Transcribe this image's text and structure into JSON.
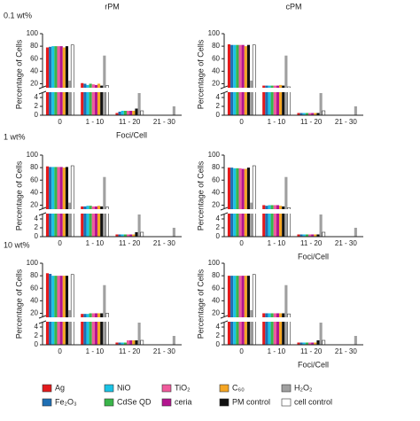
{
  "legend": [
    {
      "name": "Ag",
      "color": "#e31a1c"
    },
    {
      "name": "Fe₂O₃",
      "color": "#1f6fb4"
    },
    {
      "name": "NiO",
      "color": "#19c3e6"
    },
    {
      "name": "CdSe QD",
      "color": "#3ab54a"
    },
    {
      "name": "TiO₂",
      "color": "#f05a9c"
    },
    {
      "name": "ceria",
      "color": "#b3158f"
    },
    {
      "name": "C₆₀",
      "color": "#f5a623"
    },
    {
      "name": "PM control",
      "color": "#111111"
    },
    {
      "name": "H₂O₂",
      "color": "#a0a0a0"
    },
    {
      "name": "cell control",
      "color": "#ffffff"
    }
  ],
  "chart_data": [
    {
      "type": "bar",
      "title": "rPM",
      "row_label": "0.1 wt%",
      "xlabel": "Foci/Cell",
      "ylabel": "Percentage of Cells",
      "categories": [
        "0",
        "1 - 10",
        "11 - 20",
        "21 - 30"
      ],
      "ylim": [
        0,
        100
      ],
      "ybreak": [
        5,
        15
      ],
      "yticks": [
        0,
        2,
        4,
        20,
        40,
        60,
        80,
        100
      ],
      "series": [
        {
          "values": [
            78,
            21,
            0.5,
            0
          ]
        },
        {
          "values": [
            79,
            20,
            0.8,
            0
          ]
        },
        {
          "values": [
            80,
            18,
            1,
            0
          ]
        },
        {
          "values": [
            80,
            20,
            1,
            0
          ]
        },
        {
          "values": [
            80,
            19,
            1,
            0
          ]
        },
        {
          "values": [
            80,
            18,
            1,
            0
          ]
        },
        {
          "values": [
            78,
            20,
            1,
            0
          ]
        },
        {
          "values": [
            80,
            17,
            1.5,
            0
          ]
        },
        {
          "values": [
            25,
            65,
            5,
            2
          ]
        },
        {
          "values": [
            82,
            17,
            1,
            0
          ]
        }
      ]
    },
    {
      "type": "bar",
      "title": "cPM",
      "ylabel": "Percentage of Cells",
      "categories": [
        "0",
        "1 - 10",
        "11 - 20",
        "21 - 30"
      ],
      "ylim": [
        0,
        100
      ],
      "ybreak": [
        5,
        15
      ],
      "yticks": [
        0,
        2,
        4,
        20,
        40,
        60,
        80,
        100
      ],
      "series": [
        {
          "values": [
            83,
            17,
            0.5,
            0
          ]
        },
        {
          "values": [
            82,
            17,
            0.5,
            0
          ]
        },
        {
          "values": [
            82,
            17,
            0.5,
            0
          ]
        },
        {
          "values": [
            82,
            17,
            0.5,
            0
          ]
        },
        {
          "values": [
            82,
            17,
            0.5,
            0
          ]
        },
        {
          "values": [
            82,
            17,
            0.5,
            0
          ]
        },
        {
          "values": [
            80,
            18,
            0.5,
            0
          ]
        },
        {
          "values": [
            82,
            17,
            0.5,
            0
          ]
        },
        {
          "values": [
            25,
            65,
            5,
            2
          ]
        },
        {
          "values": [
            82,
            15,
            1,
            0
          ]
        }
      ]
    },
    {
      "type": "bar",
      "row_label": "1 wt%",
      "ylabel": "Percentage of Cells",
      "categories": [
        "0",
        "1 - 10",
        "11 - 20",
        "21 - 30"
      ],
      "ylim": [
        0,
        100
      ],
      "ybreak": [
        5,
        15
      ],
      "yticks": [
        0,
        2,
        4,
        20,
        40,
        60,
        80,
        100
      ],
      "series": [
        {
          "values": [
            82,
            18,
            0.5,
            0
          ]
        },
        {
          "values": [
            81,
            18,
            0.5,
            0
          ]
        },
        {
          "values": [
            81,
            19,
            0.5,
            0
          ]
        },
        {
          "values": [
            81,
            19,
            0.5,
            0
          ]
        },
        {
          "values": [
            81,
            18,
            0.5,
            0
          ]
        },
        {
          "values": [
            81,
            18,
            0.5,
            0
          ]
        },
        {
          "values": [
            80,
            19,
            0.5,
            0
          ]
        },
        {
          "values": [
            81,
            18,
            1,
            0
          ]
        },
        {
          "values": [
            24,
            65,
            5,
            2
          ]
        },
        {
          "values": [
            83,
            17,
            1,
            0
          ]
        }
      ]
    },
    {
      "type": "bar",
      "xlabel": "Foci/Cell",
      "ylabel": "Percentage of Cells",
      "categories": [
        "0",
        "1 - 10",
        "11 - 20",
        "21 - 30"
      ],
      "ylim": [
        0,
        100
      ],
      "ybreak": [
        5,
        15
      ],
      "yticks": [
        0,
        2,
        4,
        20,
        40,
        60,
        80,
        100
      ],
      "series": [
        {
          "values": [
            80,
            20,
            0.5,
            0
          ]
        },
        {
          "values": [
            80,
            19,
            0.5,
            0
          ]
        },
        {
          "values": [
            79,
            20,
            0.5,
            0
          ]
        },
        {
          "values": [
            79,
            20,
            0.5,
            0
          ]
        },
        {
          "values": [
            79,
            20,
            0.5,
            0
          ]
        },
        {
          "values": [
            78,
            20,
            0.5,
            0
          ]
        },
        {
          "values": [
            78,
            19,
            0.5,
            0
          ]
        },
        {
          "values": [
            80,
            18,
            0.5,
            0
          ]
        },
        {
          "values": [
            24,
            65,
            5,
            2
          ]
        },
        {
          "values": [
            83,
            16,
            1,
            0
          ]
        }
      ]
    },
    {
      "type": "bar",
      "row_label": "10 wt%",
      "ylabel": "Percentage of Cells",
      "categories": [
        "0",
        "1 - 10",
        "11 - 20",
        "21 - 30"
      ],
      "ylim": [
        0,
        100
      ],
      "ybreak": [
        5,
        15
      ],
      "yticks": [
        0,
        2,
        4,
        20,
        40,
        60,
        80,
        100
      ],
      "series": [
        {
          "values": [
            84,
            19,
            0.5,
            0
          ]
        },
        {
          "values": [
            83,
            19,
            0.5,
            0
          ]
        },
        {
          "values": [
            80,
            19,
            0.5,
            0
          ]
        },
        {
          "values": [
            80,
            20,
            0.5,
            0
          ]
        },
        {
          "values": [
            80,
            20,
            1,
            0
          ]
        },
        {
          "values": [
            80,
            20,
            1,
            0
          ]
        },
        {
          "values": [
            80,
            20,
            1,
            0
          ]
        },
        {
          "values": [
            80,
            20,
            1,
            0
          ]
        },
        {
          "values": [
            25,
            65,
            5,
            2
          ]
        },
        {
          "values": [
            82,
            20,
            1,
            0
          ]
        }
      ]
    },
    {
      "type": "bar",
      "xlabel": "Foci/Cell",
      "ylabel": "Percentage of Cells",
      "categories": [
        "0",
        "1 - 10",
        "11 - 20",
        "21 - 30"
      ],
      "ylim": [
        0,
        100
      ],
      "ybreak": [
        5,
        15
      ],
      "yticks": [
        0,
        2,
        4,
        20,
        40,
        60,
        80,
        100
      ],
      "series": [
        {
          "values": [
            80,
            20,
            0.5,
            0
          ]
        },
        {
          "values": [
            80,
            20,
            0.5,
            0
          ]
        },
        {
          "values": [
            80,
            20,
            0.5,
            0
          ]
        },
        {
          "values": [
            80,
            20,
            0.5,
            0
          ]
        },
        {
          "values": [
            80,
            20,
            0.5,
            0
          ]
        },
        {
          "values": [
            80,
            20,
            0.5,
            0
          ]
        },
        {
          "values": [
            80,
            20,
            0.5,
            0
          ]
        },
        {
          "values": [
            80,
            20,
            1,
            0
          ]
        },
        {
          "values": [
            25,
            65,
            5,
            2
          ]
        },
        {
          "values": [
            82,
            19,
            1,
            0
          ]
        }
      ]
    }
  ]
}
